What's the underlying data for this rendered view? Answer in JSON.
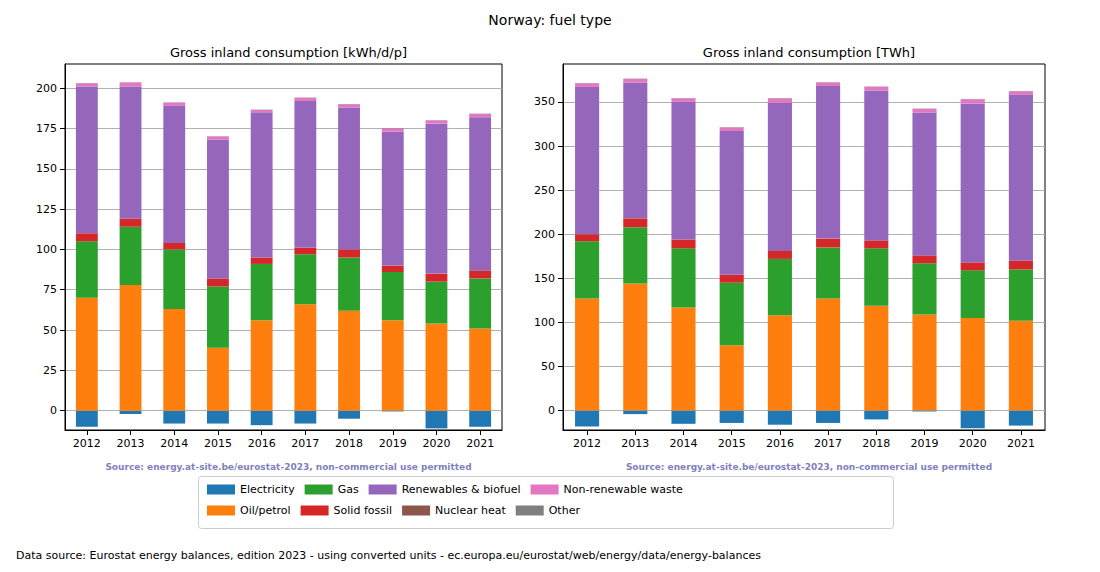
{
  "title": "Norway: fuel type",
  "footnote": "Data source: Eurostat energy balances, edition 2023 - using converted units - ec.europa.eu/eurostat/web/energy/data/energy-balances",
  "chart_data": [
    {
      "type": "bar",
      "title": "Gross inland consumption [kWh/d/p]",
      "source": "Source: energy.at-site.be/eurostat-2023, non-commercial use permitted",
      "stacked": true,
      "grid": true,
      "legend": "bottom",
      "categories": [
        "2012",
        "2013",
        "2014",
        "2015",
        "2016",
        "2017",
        "2018",
        "2019",
        "2020",
        "2021"
      ],
      "ylim": [
        -12,
        215
      ],
      "yticks": [
        0,
        25,
        50,
        75,
        100,
        125,
        150,
        175,
        200
      ],
      "series": [
        {
          "name": "Electricity",
          "color": "#1f77b4",
          "values": [
            -10,
            -2,
            -8,
            -8,
            -9,
            -8,
            -5,
            -0.5,
            -11,
            -10
          ]
        },
        {
          "name": "Oil/petrol",
          "color": "#ff7f0e",
          "values": [
            70,
            78,
            63,
            39,
            56,
            66,
            62,
            56,
            54,
            51
          ]
        },
        {
          "name": "Gas",
          "color": "#2ca02c",
          "values": [
            35,
            36,
            37,
            38,
            35,
            31,
            33,
            30,
            26,
            31
          ]
        },
        {
          "name": "Solid fossil",
          "color": "#d62728",
          "values": [
            5,
            5,
            4,
            5,
            4,
            4,
            5,
            4,
            5,
            5
          ]
        },
        {
          "name": "Renewables & biofuel",
          "color": "#9467bd",
          "values": [
            91,
            82,
            85,
            86,
            90,
            91,
            88,
            83,
            93,
            95
          ]
        },
        {
          "name": "Nuclear heat",
          "color": "#8c564b",
          "values": [
            0,
            0,
            0,
            0,
            0,
            0,
            0,
            0,
            0,
            0
          ]
        },
        {
          "name": "Non-renewable waste",
          "color": "#e377c2",
          "values": [
            2,
            2.5,
            2,
            2,
            1.5,
            2,
            2,
            2,
            2,
            2
          ]
        },
        {
          "name": "Other",
          "color": "#7f7f7f",
          "values": [
            0.2,
            0.2,
            0.2,
            0.2,
            0.2,
            0.2,
            0.2,
            0.2,
            0.2,
            0.2
          ]
        }
      ]
    },
    {
      "type": "bar",
      "title": "Gross inland consumption [TWh]",
      "source": "Source: energy.at-site.be/eurostat-2023, non-commercial use permitted",
      "stacked": true,
      "grid": true,
      "legend": "bottom",
      "categories": [
        "2012",
        "2013",
        "2014",
        "2015",
        "2016",
        "2017",
        "2018",
        "2019",
        "2020",
        "2021"
      ],
      "ylim": [
        -22,
        393
      ],
      "yticks": [
        0,
        50,
        100,
        150,
        200,
        250,
        300,
        350
      ],
      "series": [
        {
          "name": "Electricity",
          "color": "#1f77b4",
          "values": [
            -18,
            -4,
            -15,
            -14,
            -16,
            -14,
            -10,
            -1,
            -20,
            -17
          ]
        },
        {
          "name": "Oil/petrol",
          "color": "#ff7f0e",
          "values": [
            127,
            144,
            117,
            74,
            108,
            127,
            119,
            109,
            105,
            102
          ]
        },
        {
          "name": "Gas",
          "color": "#2ca02c",
          "values": [
            65,
            64,
            67,
            71,
            64,
            58,
            65,
            58,
            54,
            58
          ]
        },
        {
          "name": "Solid fossil",
          "color": "#d62728",
          "values": [
            8,
            10,
            10,
            9,
            9,
            10,
            9,
            9,
            9,
            10
          ]
        },
        {
          "name": "Renewables & biofuel",
          "color": "#9467bd",
          "values": [
            167,
            154,
            156,
            163,
            168,
            173,
            170,
            162,
            180,
            188
          ]
        },
        {
          "name": "Nuclear heat",
          "color": "#8c564b",
          "values": [
            0,
            0,
            0,
            0,
            0,
            0,
            0,
            0,
            0,
            0
          ]
        },
        {
          "name": "Non-renewable waste",
          "color": "#e377c2",
          "values": [
            4,
            4,
            4,
            4,
            5,
            4,
            4,
            4,
            5,
            4
          ]
        },
        {
          "name": "Other",
          "color": "#7f7f7f",
          "values": [
            0.4,
            0.4,
            0.4,
            0.4,
            0.4,
            0.4,
            0.4,
            0.4,
            0.4,
            0.4
          ]
        }
      ]
    }
  ]
}
